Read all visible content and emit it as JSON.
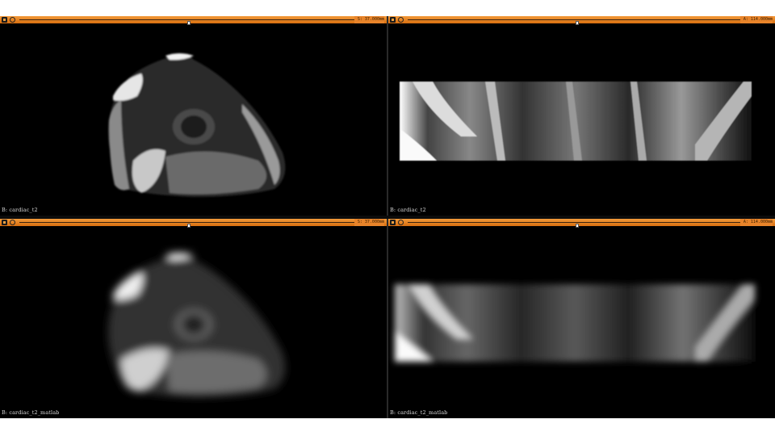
{
  "views": [
    {
      "id": "tl",
      "label": "B: cardiac_t2",
      "offset": "S: 37.000mm"
    },
    {
      "id": "tr",
      "label": "B: cardiac_t2",
      "offset": "A: 114.000mm"
    },
    {
      "id": "bl",
      "label": "B: cardiac_t2_matlab",
      "offset": "S: 37.000mm"
    },
    {
      "id": "br",
      "label": "B: cardiac_t2_matlab",
      "offset": "A: 114.000mm"
    }
  ],
  "sliders": [
    0.5,
    0.5,
    0.5,
    0.5
  ],
  "icons": {
    "pin": "pin-icon",
    "link": "link-icon"
  }
}
